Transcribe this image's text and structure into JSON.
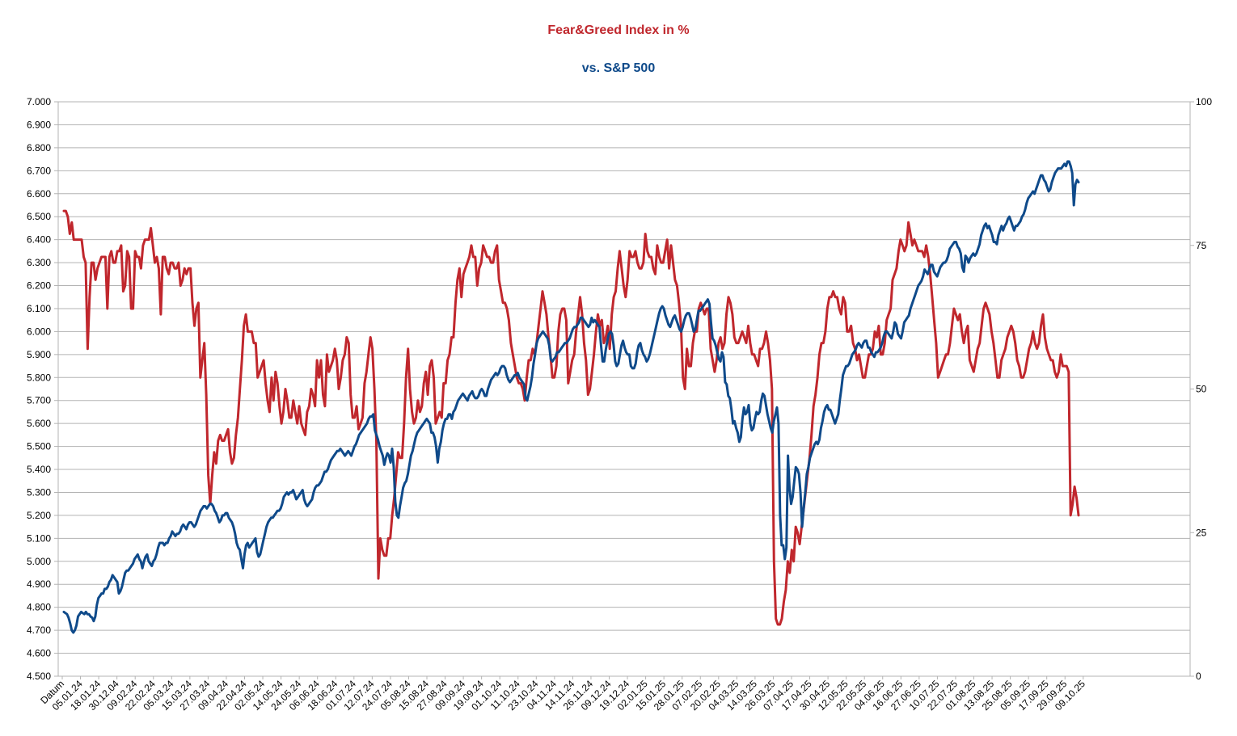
{
  "chart_data": {
    "type": "line",
    "title": "Fear&Greed Index in %",
    "subtitle": "vs. S&P 500",
    "title_color": "#c0272d",
    "subtitle_color": "#0f4a8a",
    "first_category_label": "Datum",
    "x_tick_labels": [
      "05.01.24",
      "18.01.24",
      "30.12.04",
      "09.02.24",
      "22.02.24",
      "05.03.24",
      "15.03.24",
      "27.03.24",
      "09.04.24",
      "22.04.24",
      "02.05.24",
      "14.05.24",
      "24.05.24",
      "06.06.24",
      "18.06.24",
      "01.07.24",
      "12.07.24",
      "24.07.24",
      "05.08.24",
      "15.08.24",
      "27.08.24",
      "09.09.24",
      "19.09.24",
      "01.10.24",
      "11.10.24",
      "23.10.24",
      "04.11.24",
      "14.11.24",
      "26.11.24",
      "09.12.24",
      "19.12.24",
      "02.01.25",
      "15.01.25",
      "28.01.25",
      "07.02.25",
      "20.02.25",
      "04.03.25",
      "14.03.25",
      "26.03.25",
      "07.04.25",
      "17.04.25",
      "30.04.25",
      "12.05.25",
      "22.05.25",
      "04.06.25",
      "16.06.25",
      "27.06.25",
      "10.07.25",
      "22.07.25",
      "01.08.25",
      "13.08.25",
      "25.08.25",
      "05.09.25",
      "17.09.25",
      "29.09.25",
      "09.10.25"
    ],
    "left_axis": {
      "min": 4500,
      "max": 7000,
      "step": 100,
      "tick_labels": [
        "4.500",
        "4.600",
        "4.700",
        "4.800",
        "4.900",
        "5.000",
        "5.100",
        "5.200",
        "5.300",
        "5.400",
        "5.500",
        "5.600",
        "5.700",
        "5.800",
        "5.900",
        "6.000",
        "6.100",
        "6.200",
        "6.300",
        "6.400",
        "6.500",
        "6.600",
        "6.700",
        "6.800",
        "6.900",
        "7.000"
      ]
    },
    "right_axis": {
      "min": 0,
      "max": 100,
      "tick_labels": [
        "0",
        "25",
        "50",
        "75",
        "100"
      ]
    },
    "grid": true,
    "legend": "none",
    "series": [
      {
        "axis": "right",
        "color": "#c0272d",
        "values": [
          81,
          81,
          80,
          77,
          79,
          76,
          76,
          76,
          76,
          76,
          73,
          72,
          57,
          66,
          72,
          72,
          69,
          71,
          72,
          73,
          73,
          73,
          64,
          73,
          74,
          72,
          72,
          74,
          74,
          75,
          67,
          68,
          74,
          73,
          64,
          64,
          74,
          73,
          73,
          71,
          75,
          76,
          76,
          76,
          78,
          75,
          72,
          73,
          71,
          63,
          73,
          73,
          71,
          70,
          72,
          72,
          71,
          71,
          72,
          68,
          69,
          71,
          70,
          71,
          71,
          65,
          61,
          64,
          65,
          52,
          55,
          58,
          49,
          35,
          30,
          35,
          39,
          37,
          41,
          42,
          41,
          41,
          42,
          43,
          39,
          37,
          38,
          42,
          45,
          50,
          55,
          61,
          63,
          60,
          60,
          60,
          58,
          58,
          52,
          53,
          54,
          55,
          51,
          48,
          46,
          52,
          48,
          53,
          51,
          47,
          44,
          46,
          50,
          48,
          45,
          45,
          48,
          46,
          44,
          47,
          44,
          43,
          42,
          46,
          47,
          50,
          49,
          47,
          55,
          52,
          55,
          49,
          47,
          56,
          53,
          54,
          55,
          57,
          55,
          50,
          52,
          55,
          56,
          59,
          58,
          49,
          45,
          45,
          47,
          43,
          44,
          45,
          51,
          53,
          56,
          59,
          57,
          50,
          41,
          17,
          24,
          22,
          21,
          21,
          24,
          24,
          28,
          31,
          35,
          39,
          38,
          38,
          44,
          52,
          57,
          50,
          46,
          44,
          45,
          48,
          46,
          47,
          51,
          53,
          49,
          54,
          55,
          52,
          44,
          45,
          46,
          45,
          51,
          51,
          55,
          56,
          59,
          59,
          65,
          69,
          71,
          66,
          70,
          71,
          72,
          73,
          75,
          73,
          73,
          68,
          71,
          72,
          75,
          74,
          73,
          73,
          72,
          72,
          74,
          75,
          69,
          67,
          65,
          65,
          64,
          62,
          58,
          56,
          54,
          52,
          51,
          51,
          50,
          48,
          52,
          55,
          55,
          57,
          56,
          58,
          61,
          64,
          67,
          65,
          63,
          59,
          56,
          52,
          52,
          54,
          60,
          63,
          64,
          64,
          62,
          51,
          53,
          55,
          56,
          60,
          63,
          66,
          63,
          58,
          55,
          49,
          50,
          53,
          56,
          60,
          63,
          61,
          62,
          58,
          59,
          61,
          57,
          63,
          66,
          67,
          71,
          74,
          71,
          68,
          66,
          69,
          74,
          73,
          73,
          74,
          72,
          71,
          71,
          72,
          77,
          74,
          73,
          73,
          71,
          70,
          75,
          73,
          72,
          72,
          74,
          76,
          71,
          75,
          72,
          69,
          68,
          65,
          61,
          52,
          50,
          57,
          54,
          54,
          58,
          60,
          60,
          64,
          65,
          64,
          63,
          64,
          64,
          57,
          55,
          53,
          55,
          58,
          59,
          57,
          58,
          63,
          66,
          65,
          63,
          59,
          58,
          58,
          59,
          60,
          59,
          58,
          61,
          58,
          56,
          56,
          55,
          54,
          57,
          57,
          58,
          60,
          58,
          55,
          50,
          20,
          10,
          9,
          9,
          10,
          13,
          15,
          20,
          18,
          22,
          20,
          26,
          25,
          23,
          26,
          29,
          32,
          35,
          38,
          42,
          47,
          49,
          52,
          56,
          58,
          58,
          60,
          64,
          66,
          66,
          67,
          66,
          66,
          64,
          63,
          66,
          65,
          60,
          60,
          61,
          58,
          57,
          55,
          56,
          54,
          52,
          52,
          54,
          56,
          56,
          57,
          60,
          59,
          61,
          56,
          56,
          58,
          62,
          63,
          64,
          69,
          70,
          71,
          74,
          76,
          75,
          74,
          75,
          79,
          77,
          75,
          76,
          75,
          74,
          74,
          74,
          73,
          75,
          73,
          70,
          66,
          62,
          58,
          52,
          53,
          54,
          55,
          56,
          56,
          58,
          61,
          64,
          63,
          62,
          63,
          60,
          58,
          60,
          61,
          55,
          54,
          53,
          55,
          57,
          58,
          61,
          64,
          65,
          64,
          63,
          60,
          58,
          55,
          52,
          52,
          55,
          56,
          57,
          59,
          60,
          61,
          60,
          58,
          55,
          54,
          52,
          52,
          53,
          55,
          57,
          58,
          60,
          58,
          57,
          58,
          61,
          63,
          59,
          57,
          56,
          55,
          55,
          53,
          52,
          53,
          56,
          54,
          54,
          54,
          53,
          28,
          30,
          33,
          31,
          28
        ]
      },
      {
        "axis": "left",
        "color": "#0f4a8a",
        "values": [
          4780,
          4775,
          4770,
          4755,
          4730,
          4700,
          4690,
          4700,
          4720,
          4760,
          4770,
          4780,
          4775,
          4770,
          4780,
          4770,
          4770,
          4760,
          4755,
          4740,
          4760,
          4810,
          4840,
          4850,
          4860,
          4860,
          4880,
          4880,
          4890,
          4910,
          4920,
          4940,
          4930,
          4920,
          4910,
          4860,
          4870,
          4890,
          4920,
          4950,
          4960,
          4960,
          4970,
          4980,
          4990,
          5010,
          5020,
          5030,
          5010,
          5000,
          4970,
          5000,
          5020,
          5030,
          5000,
          4990,
          4980,
          5000,
          5010,
          5030,
          5060,
          5080,
          5080,
          5080,
          5070,
          5080,
          5080,
          5100,
          5110,
          5130,
          5120,
          5110,
          5120,
          5120,
          5130,
          5150,
          5160,
          5150,
          5140,
          5160,
          5170,
          5170,
          5160,
          5150,
          5160,
          5180,
          5200,
          5220,
          5230,
          5240,
          5240,
          5230,
          5240,
          5250,
          5250,
          5240,
          5220,
          5210,
          5190,
          5170,
          5180,
          5200,
          5200,
          5210,
          5210,
          5190,
          5180,
          5170,
          5150,
          5120,
          5080,
          5060,
          5050,
          5010,
          4970,
          5030,
          5070,
          5080,
          5060,
          5070,
          5080,
          5090,
          5100,
          5040,
          5020,
          5030,
          5060,
          5090,
          5120,
          5150,
          5170,
          5180,
          5190,
          5190,
          5200,
          5210,
          5220,
          5220,
          5230,
          5250,
          5280,
          5290,
          5300,
          5290,
          5300,
          5300,
          5310,
          5290,
          5270,
          5280,
          5290,
          5300,
          5310,
          5270,
          5250,
          5240,
          5250,
          5260,
          5270,
          5300,
          5320,
          5330,
          5330,
          5340,
          5350,
          5370,
          5390,
          5390,
          5400,
          5420,
          5440,
          5450,
          5460,
          5470,
          5480,
          5480,
          5490,
          5480,
          5470,
          5460,
          5470,
          5480,
          5470,
          5460,
          5480,
          5500,
          5510,
          5530,
          5550,
          5560,
          5570,
          5580,
          5590,
          5600,
          5620,
          5630,
          5630,
          5640,
          5570,
          5550,
          5530,
          5500,
          5480,
          5460,
          5420,
          5450,
          5470,
          5460,
          5430,
          5490,
          5410,
          5260,
          5200,
          5190,
          5240,
          5280,
          5320,
          5340,
          5350,
          5380,
          5420,
          5460,
          5480,
          5510,
          5540,
          5560,
          5570,
          5580,
          5590,
          5600,
          5610,
          5620,
          5610,
          5600,
          5560,
          5560,
          5540,
          5500,
          5430,
          5490,
          5520,
          5570,
          5600,
          5620,
          5620,
          5640,
          5640,
          5620,
          5650,
          5660,
          5680,
          5700,
          5710,
          5720,
          5730,
          5720,
          5710,
          5700,
          5720,
          5730,
          5740,
          5720,
          5710,
          5710,
          5720,
          5740,
          5750,
          5740,
          5720,
          5720,
          5750,
          5770,
          5790,
          5800,
          5810,
          5820,
          5810,
          5820,
          5840,
          5850,
          5850,
          5840,
          5810,
          5790,
          5780,
          5790,
          5800,
          5810,
          5810,
          5820,
          5800,
          5790,
          5780,
          5770,
          5710,
          5700,
          5730,
          5760,
          5800,
          5860,
          5900,
          5950,
          5970,
          5980,
          5990,
          6000,
          5990,
          5980,
          5970,
          5940,
          5880,
          5870,
          5880,
          5890,
          5910,
          5910,
          5920,
          5930,
          5940,
          5950,
          5950,
          5960,
          5970,
          5990,
          6010,
          6020,
          6020,
          6030,
          6040,
          6060,
          6060,
          6050,
          6040,
          6030,
          6020,
          6030,
          6060,
          6040,
          6050,
          6040,
          6030,
          6020,
          5940,
          5870,
          5870,
          5920,
          5960,
          5990,
          6000,
          5990,
          5940,
          5870,
          5850,
          5860,
          5900,
          5940,
          5960,
          5930,
          5910,
          5900,
          5900,
          5850,
          5840,
          5840,
          5860,
          5910,
          5940,
          5950,
          5920,
          5900,
          5890,
          5870,
          5880,
          5900,
          5930,
          5960,
          5990,
          6020,
          6050,
          6080,
          6100,
          6110,
          6100,
          6070,
          6050,
          6030,
          6020,
          6040,
          6060,
          6070,
          6050,
          6030,
          6010,
          6000,
          6020,
          6050,
          6070,
          6080,
          6080,
          6060,
          6030,
          6000,
          6010,
          6050,
          6090,
          6090,
          6100,
          6110,
          6120,
          6130,
          6140,
          6120,
          6040,
          5970,
          5960,
          5940,
          5910,
          5880,
          5870,
          5910,
          5890,
          5780,
          5770,
          5720,
          5710,
          5660,
          5600,
          5610,
          5580,
          5560,
          5520,
          5540,
          5620,
          5670,
          5640,
          5650,
          5680,
          5600,
          5570,
          5580,
          5620,
          5650,
          5640,
          5650,
          5700,
          5730,
          5720,
          5680,
          5640,
          5610,
          5580,
          5560,
          5610,
          5640,
          5670,
          5600,
          5200,
          5070,
          5070,
          5010,
          5060,
          5460,
          5320,
          5250,
          5280,
          5350,
          5410,
          5400,
          5380,
          5300,
          5150,
          5230,
          5300,
          5380,
          5410,
          5450,
          5470,
          5490,
          5510,
          5520,
          5510,
          5530,
          5580,
          5610,
          5650,
          5670,
          5680,
          5660,
          5660,
          5640,
          5620,
          5600,
          5620,
          5640,
          5700,
          5750,
          5810,
          5830,
          5850,
          5850,
          5860,
          5880,
          5900,
          5910,
          5920,
          5940,
          5950,
          5940,
          5930,
          5950,
          5960,
          5960,
          5930,
          5930,
          5910,
          5900,
          5890,
          5910,
          5910,
          5920,
          5930,
          5950,
          5980,
          6000,
          6000,
          5990,
          5980,
          5970,
          6000,
          6040,
          6030,
          5990,
          5980,
          5970,
          6000,
          6040,
          6050,
          6060,
          6070,
          6100,
          6120,
          6140,
          6160,
          6180,
          6200,
          6210,
          6220,
          6240,
          6270,
          6260,
          6250,
          6270,
          6290,
          6290,
          6260,
          6250,
          6240,
          6260,
          6280,
          6290,
          6300,
          6300,
          6310,
          6330,
          6360,
          6370,
          6380,
          6390,
          6390,
          6370,
          6360,
          6340,
          6280,
          6260,
          6330,
          6320,
          6300,
          6320,
          6330,
          6340,
          6330,
          6340,
          6360,
          6380,
          6420,
          6440,
          6460,
          6470,
          6450,
          6460,
          6440,
          6420,
          6390,
          6390,
          6380,
          6420,
          6440,
          6460,
          6440,
          6460,
          6470,
          6490,
          6500,
          6480,
          6460,
          6440,
          6460,
          6460,
          6470,
          6480,
          6500,
          6510,
          6530,
          6560,
          6580,
          6590,
          6600,
          6610,
          6600,
          6620,
          6640,
          6660,
          6680,
          6680,
          6660,
          6650,
          6630,
          6610,
          6620,
          6650,
          6670,
          6690,
          6700,
          6710,
          6710,
          6710,
          6720,
          6730,
          6720,
          6740,
          6740,
          6720,
          6690,
          6550,
          6640,
          6660,
          6650
        ]
      }
    ]
  }
}
